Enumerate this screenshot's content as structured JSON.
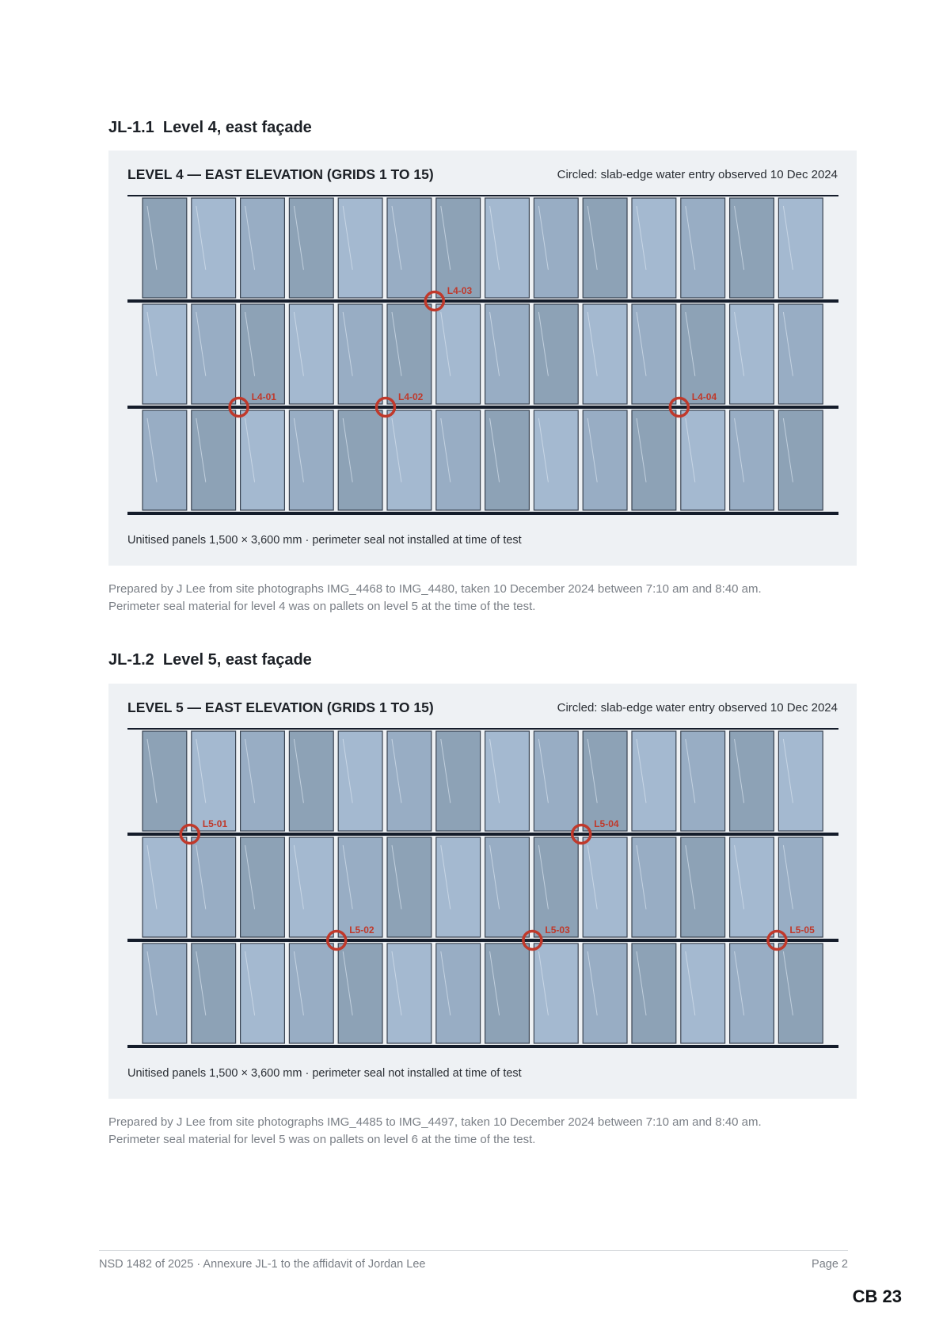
{
  "figures": [
    {
      "heading": "JL-1.1  Level 4, east façade",
      "title": "LEVEL 4 — EAST ELEVATION (GRIDS 1 TO 15)",
      "note": "Circled: slab-edge water entry observed 10 Dec 2024",
      "caption": "Unitised panels 1,500 × 3,600 mm · perimeter seal not installed at time of test",
      "prepared_line1": "Prepared by J Lee from site photographs IMG_4468 to IMG_4480, taken 10 December 2024 between 7:10 am and 8:40 am.",
      "prepared_line2": "Perimeter seal material for level 4 was on pallets on level 5 at the time of the test.",
      "markers": [
        {
          "label": "L4-03",
          "slab": 1,
          "grid": 7
        },
        {
          "label": "L4-01",
          "slab": 2,
          "grid": 3
        },
        {
          "label": "L4-02",
          "slab": 2,
          "grid": 6
        },
        {
          "label": "L4-04",
          "slab": 2,
          "grid": 12
        }
      ]
    },
    {
      "heading": "JL-1.2  Level 5, east façade",
      "title": "LEVEL 5 — EAST ELEVATION (GRIDS 1 TO 15)",
      "note": "Circled: slab-edge water entry observed 10 Dec 2024",
      "caption": "Unitised panels 1,500 × 3,600 mm · perimeter seal not installed at time of test",
      "prepared_line1": "Prepared by J Lee from site photographs IMG_4485 to IMG_4497, taken 10 December 2024 between 7:10 am and 8:40 am.",
      "prepared_line2": "Perimeter seal material for level 5 was on pallets on level 6 at the time of the test.",
      "markers": [
        {
          "label": "L5-01",
          "slab": 1,
          "grid": 2
        },
        {
          "label": "L5-04",
          "slab": 1,
          "grid": 10
        },
        {
          "label": "L5-02",
          "slab": 2,
          "grid": 5
        },
        {
          "label": "L5-03",
          "slab": 2,
          "grid": 9
        },
        {
          "label": "L5-05",
          "slab": 2,
          "grid": 14
        }
      ]
    }
  ],
  "footer": {
    "left": "NSD 1482 of 2025 · Annexure JL-1 to the affidavit of Jordan Lee",
    "right": "Page 2",
    "stamp": "CB 23"
  },
  "colors": {
    "marker": "#c0392b",
    "slab": "#141c2a",
    "glass_light": "#a4b9d0",
    "glass_mid": "#98adc4",
    "glass_dark": "#8da2b6"
  }
}
